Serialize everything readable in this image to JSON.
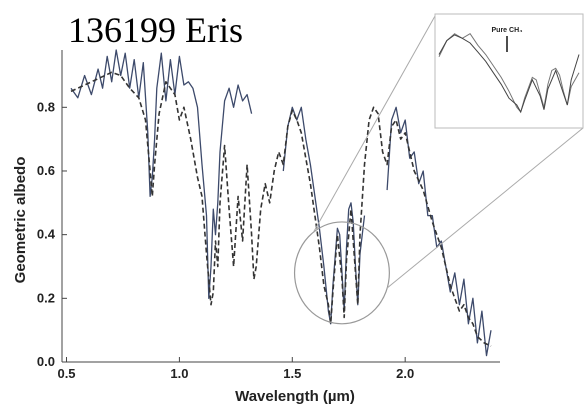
{
  "chart_data": {
    "type": "line",
    "title": "136199 Eris",
    "xlabel": "Wavelength (µm)",
    "ylabel": "Geometric albedo",
    "xlim": [
      0.48,
      2.42
    ],
    "ylim": [
      0.0,
      0.98
    ],
    "x_ticks": [
      {
        "value": 0.5,
        "label": "0.5"
      },
      {
        "value": 1.0,
        "label": "1.0"
      },
      {
        "value": 1.5,
        "label": "1.5"
      },
      {
        "value": 2.0,
        "label": "2.0"
      }
    ],
    "y_ticks": [
      {
        "value": 0.0,
        "label": "0.0"
      },
      {
        "value": 0.2,
        "label": "0.2"
      },
      {
        "value": 0.4,
        "label": "0.4"
      },
      {
        "value": 0.6,
        "label": "0.6"
      },
      {
        "value": 0.8,
        "label": "0.8"
      }
    ],
    "grid": false,
    "series": [
      {
        "kind": "observed",
        "color": "#3d4a6b",
        "segments": [
          {
            "x": [
              0.52,
              0.55,
              0.58,
              0.61,
              0.64,
              0.66,
              0.68,
              0.7,
              0.72,
              0.74,
              0.76,
              0.78,
              0.8,
              0.82,
              0.84,
              0.86,
              0.87,
              0.88,
              0.89,
              0.9,
              0.92,
              0.94,
              0.96,
              0.98,
              1.0,
              1.02,
              1.04,
              1.06,
              1.08,
              1.1,
              1.12,
              1.13,
              1.14,
              1.15,
              1.16,
              1.17,
              1.18,
              1.2,
              1.22,
              1.24,
              1.26,
              1.28,
              1.3,
              1.32
            ],
            "y": [
              0.86,
              0.83,
              0.9,
              0.84,
              0.92,
              0.86,
              0.96,
              0.88,
              0.98,
              0.9,
              0.97,
              0.86,
              0.95,
              0.83,
              0.94,
              0.72,
              0.52,
              0.58,
              0.7,
              0.86,
              0.97,
              0.82,
              0.95,
              0.84,
              0.96,
              0.87,
              0.88,
              0.86,
              0.8,
              0.62,
              0.46,
              0.2,
              0.3,
              0.48,
              0.4,
              0.5,
              0.66,
              0.82,
              0.86,
              0.8,
              0.87,
              0.82,
              0.84,
              0.78
            ]
          },
          {
            "x": [
              1.46,
              1.48,
              1.5,
              1.52,
              1.54,
              1.56,
              1.58,
              1.6,
              1.62,
              1.64,
              1.66,
              1.67,
              1.68,
              1.7,
              1.71,
              1.72,
              1.73,
              1.74,
              1.75,
              1.76,
              1.77,
              1.78,
              1.79,
              1.8,
              1.82
            ],
            "y": [
              0.6,
              0.74,
              0.8,
              0.76,
              0.8,
              0.7,
              0.62,
              0.52,
              0.42,
              0.3,
              0.16,
              0.12,
              0.24,
              0.42,
              0.4,
              0.28,
              0.16,
              0.36,
              0.48,
              0.5,
              0.44,
              0.3,
              0.18,
              0.34,
              0.46
            ]
          },
          {
            "x": [
              1.92,
              1.94,
              1.96,
              1.98,
              2.0,
              2.02,
              2.04,
              2.06,
              2.08,
              2.1,
              2.12,
              2.14,
              2.16,
              2.18,
              2.2,
              2.22,
              2.24,
              2.26,
              2.28,
              2.3,
              2.32,
              2.34,
              2.36,
              2.38
            ],
            "y": [
              0.54,
              0.76,
              0.8,
              0.72,
              0.76,
              0.64,
              0.66,
              0.56,
              0.6,
              0.46,
              0.46,
              0.36,
              0.38,
              0.3,
              0.22,
              0.28,
              0.18,
              0.26,
              0.12,
              0.2,
              0.06,
              0.16,
              0.02,
              0.1
            ]
          }
        ]
      },
      {
        "kind": "model",
        "color": "#333333",
        "style": "dashed",
        "x": [
          0.52,
          0.58,
          0.64,
          0.7,
          0.74,
          0.78,
          0.82,
          0.85,
          0.87,
          0.88,
          0.89,
          0.91,
          0.94,
          0.98,
          1.0,
          1.02,
          1.05,
          1.08,
          1.1,
          1.12,
          1.14,
          1.15,
          1.16,
          1.17,
          1.18,
          1.2,
          1.22,
          1.24,
          1.26,
          1.28,
          1.3,
          1.32,
          1.33,
          1.34,
          1.36,
          1.38,
          1.4,
          1.42,
          1.44,
          1.46,
          1.48,
          1.5,
          1.52,
          1.54,
          1.56,
          1.58,
          1.6,
          1.62,
          1.64,
          1.66,
          1.67,
          1.68,
          1.7,
          1.72,
          1.73,
          1.74,
          1.76,
          1.78,
          1.79,
          1.8,
          1.82,
          1.84,
          1.86,
          1.88,
          1.9,
          1.92,
          1.94,
          1.96,
          1.98,
          2.0,
          2.04,
          2.08,
          2.12,
          2.16,
          2.2,
          2.22,
          2.24,
          2.26,
          2.28,
          2.3,
          2.32,
          2.35,
          2.38
        ],
        "y": [
          0.85,
          0.87,
          0.89,
          0.91,
          0.9,
          0.86,
          0.83,
          0.76,
          0.6,
          0.52,
          0.62,
          0.78,
          0.88,
          0.84,
          0.76,
          0.8,
          0.7,
          0.58,
          0.52,
          0.34,
          0.18,
          0.22,
          0.38,
          0.3,
          0.5,
          0.68,
          0.48,
          0.3,
          0.52,
          0.38,
          0.62,
          0.4,
          0.26,
          0.3,
          0.48,
          0.56,
          0.5,
          0.6,
          0.66,
          0.62,
          0.74,
          0.79,
          0.76,
          0.72,
          0.64,
          0.56,
          0.46,
          0.36,
          0.24,
          0.18,
          0.12,
          0.22,
          0.4,
          0.26,
          0.14,
          0.32,
          0.48,
          0.28,
          0.18,
          0.4,
          0.62,
          0.76,
          0.8,
          0.78,
          0.66,
          0.62,
          0.74,
          0.76,
          0.7,
          0.72,
          0.6,
          0.54,
          0.44,
          0.36,
          0.24,
          0.2,
          0.16,
          0.18,
          0.14,
          0.12,
          0.08,
          0.06,
          0.05
        ]
      }
    ],
    "zoom_circle": {
      "x": 1.72,
      "y": 0.28,
      "rx": 0.21,
      "ry": 0.16
    },
    "inset": {
      "label": "Pure CH₄"
    }
  }
}
